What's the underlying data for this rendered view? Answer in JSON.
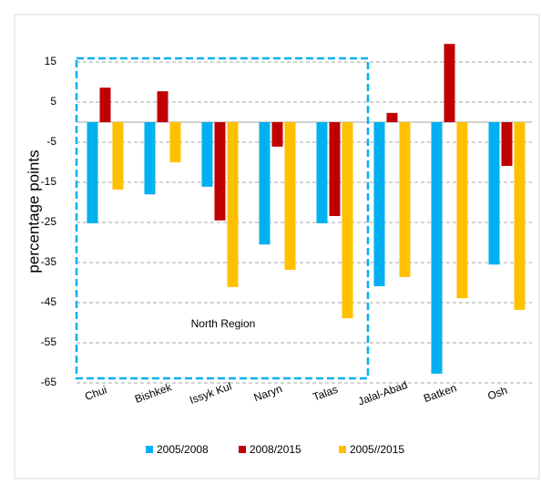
{
  "chart_data": {
    "type": "bar",
    "y_label": "percentage points",
    "categories": [
      "Chui",
      "Bishkek",
      "Issyk Kul",
      "Naryn",
      "Talas",
      "Jalal-Abad",
      "Batken",
      "Osh"
    ],
    "series": [
      {
        "name": "2005/2008",
        "color": "#00b0f0",
        "values": [
          -25.2,
          -18,
          -16.1,
          -30.5,
          -25.2,
          -40.9,
          -62.7,
          -35.5
        ]
      },
      {
        "name": "2008/2015",
        "color": "#c00000",
        "values": [
          8.6,
          7.7,
          -24.5,
          -6.1,
          -23.4,
          2.3,
          19.5,
          -10.9
        ]
      },
      {
        "name": "2005//2015",
        "color": "#ffc000",
        "values": [
          -16.8,
          -10,
          -41.1,
          -36.8,
          -48.9,
          -38.6,
          -43.9,
          -46.8
        ]
      }
    ],
    "ylim": [
      -65,
      20
    ],
    "yticks": [
      15,
      5,
      -5,
      -15,
      -25,
      -35,
      -45,
      -55,
      -65
    ],
    "grid": true,
    "annotation": "North Region"
  }
}
